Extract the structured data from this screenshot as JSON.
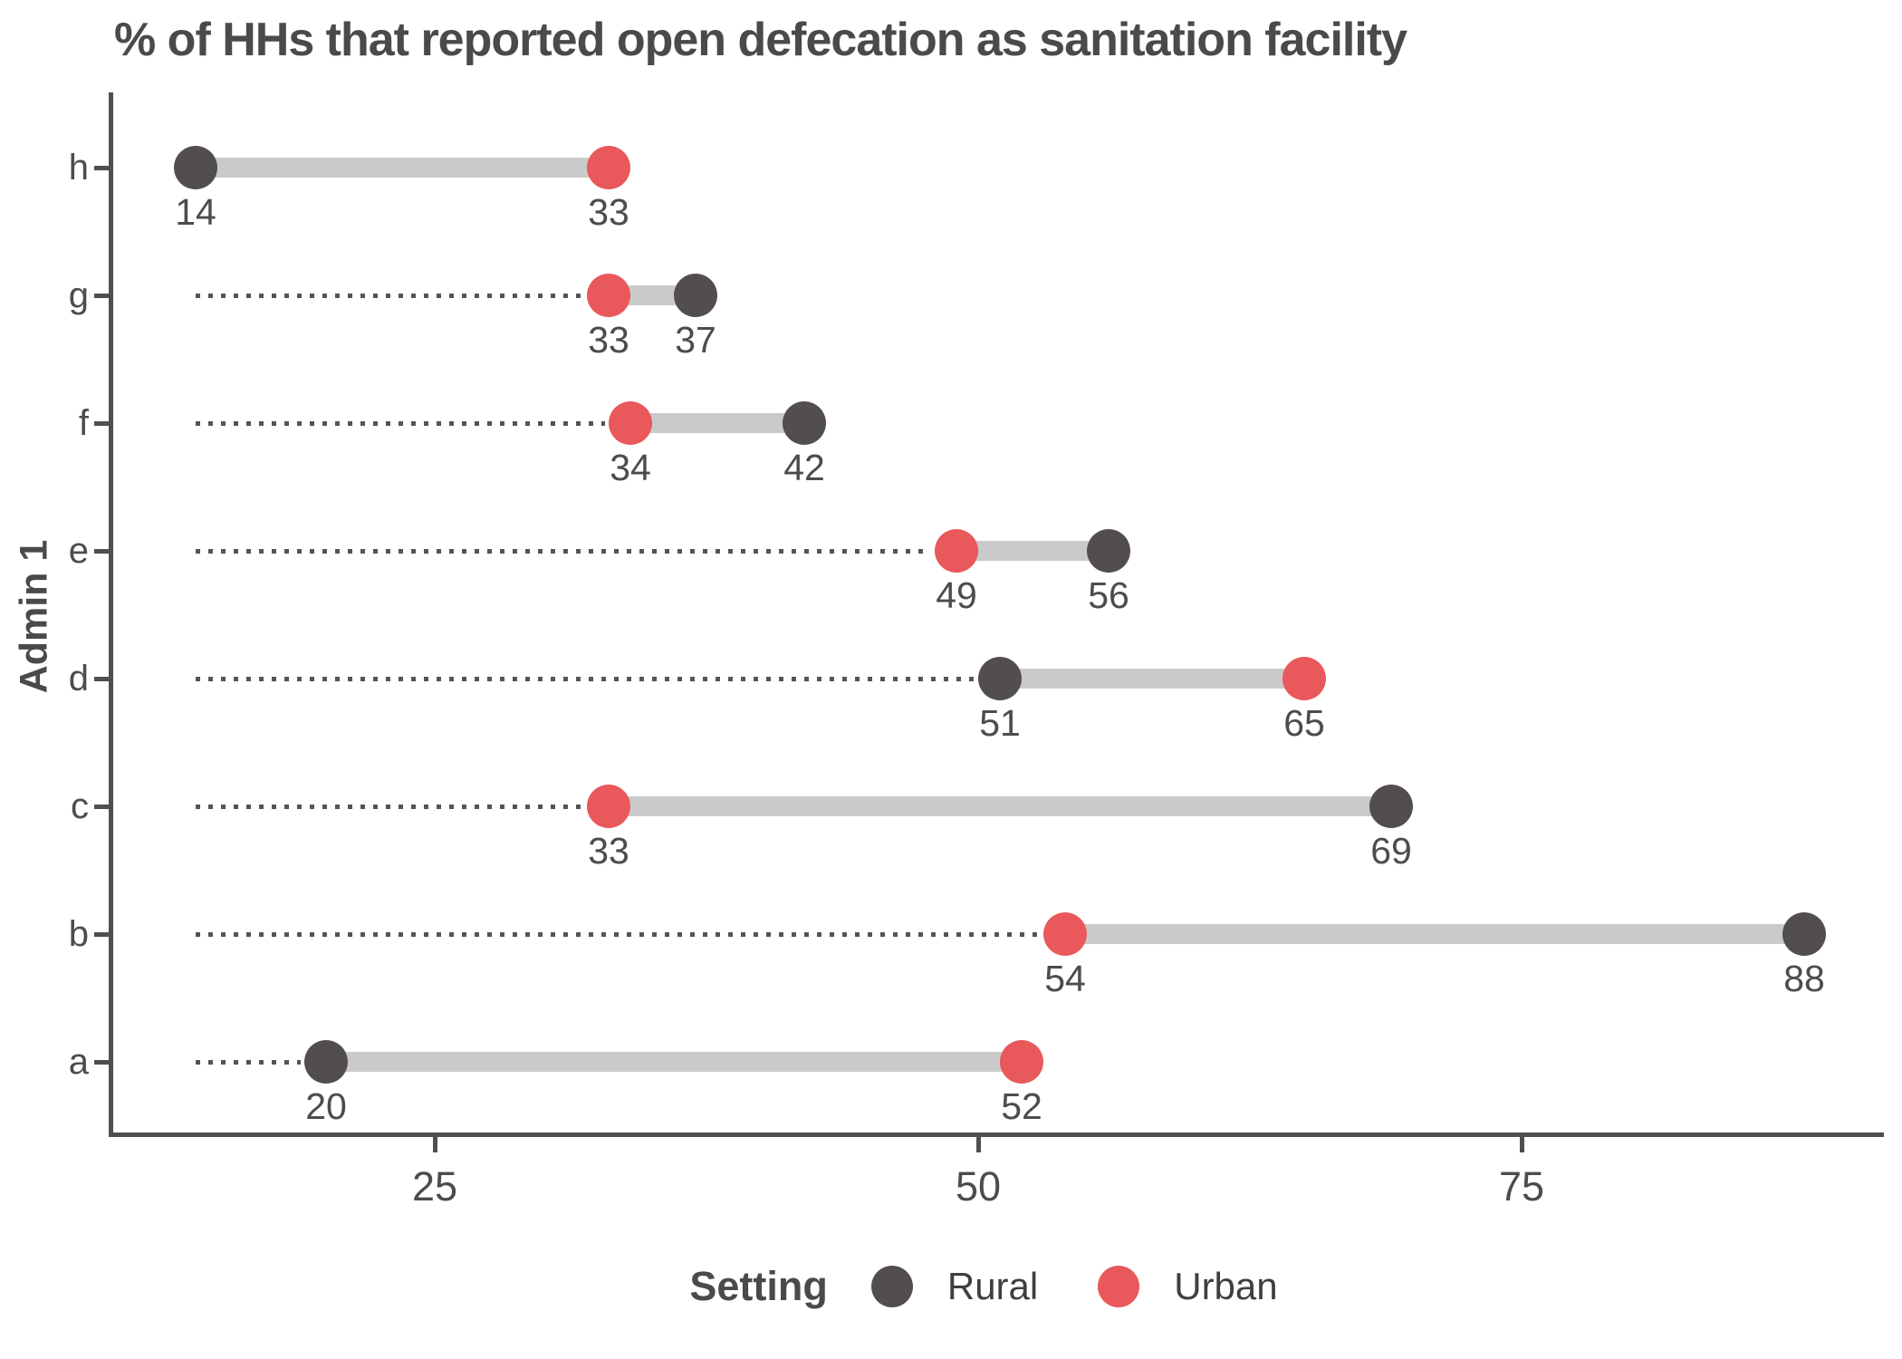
{
  "title": "% of HHs that reported open defecation as sanitation facility",
  "chart_data": {
    "type": "dumbbell",
    "title": "% of HHs that reported open defecation as sanitation facility",
    "xlabel": "",
    "ylabel": "Admin 1",
    "categories": [
      "h",
      "g",
      "f",
      "e",
      "d",
      "c",
      "b",
      "a"
    ],
    "series": [
      {
        "name": "Rural",
        "color": "#534e4e",
        "values": [
          14,
          37,
          42,
          56,
          51,
          69,
          88,
          20
        ]
      },
      {
        "name": "Urban",
        "color": "#e9585b",
        "values": [
          33,
          33,
          34,
          49,
          65,
          33,
          54,
          52
        ]
      }
    ],
    "x_ticks": [
      25,
      50,
      75
    ],
    "xlim": [
      10,
      92
    ],
    "grid": "off",
    "legend": {
      "title": "Setting",
      "position": "bottom"
    },
    "connector_color": "#cacaca",
    "dotted_line_color": "#545454",
    "dotted_lines_start_at_value": 14,
    "value_labels": "below each point"
  }
}
